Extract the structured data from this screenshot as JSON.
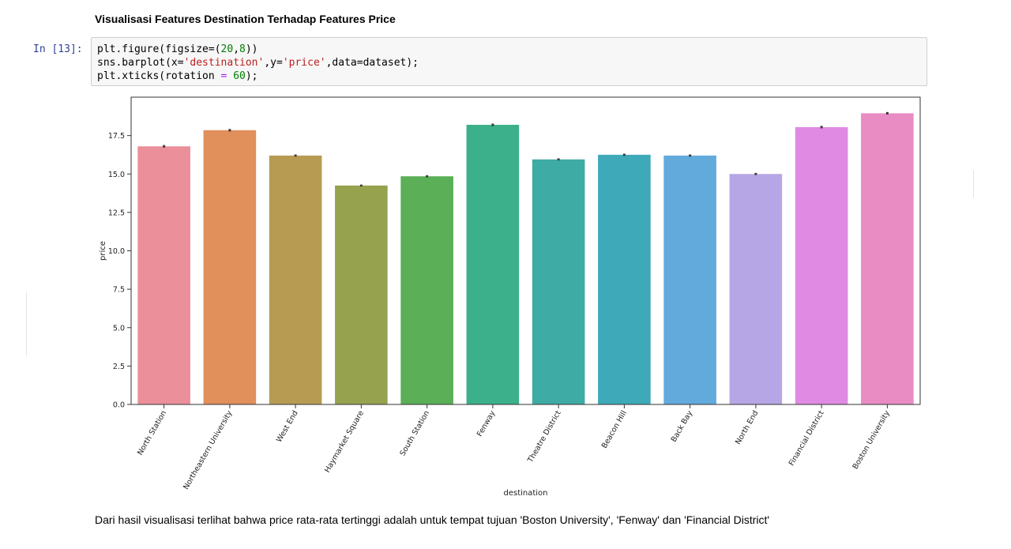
{
  "notebook": {
    "heading": "Visualisasi Features Destination Terhadap Features Price",
    "cell": {
      "prompt": "In [13]:",
      "lines": [
        [
          {
            "t": "plt.figure(figsize=("
          },
          {
            "t": "20",
            "c": "num"
          },
          {
            "t": ","
          },
          {
            "t": "8",
            "c": "num"
          },
          {
            "t": "))"
          }
        ],
        [
          {
            "t": "sns.barplot(x="
          },
          {
            "t": "'destination'",
            "c": "str"
          },
          {
            "t": ",y="
          },
          {
            "t": "'price'",
            "c": "str"
          },
          {
            "t": ",data=dataset);"
          }
        ],
        [
          {
            "t": "plt.xticks(rotation "
          },
          {
            "t": "=",
            "c": "op"
          },
          {
            "t": " "
          },
          {
            "t": "60",
            "c": "num"
          },
          {
            "t": ");"
          }
        ]
      ]
    },
    "conclusion": "Dari hasil visualisasi terlihat bahwa price rata-rata tertinggi adalah untuk tempat tujuan 'Boston University', 'Fenway' dan 'Financial District'"
  },
  "chart_data": {
    "type": "bar",
    "categories": [
      "North Station",
      "Northeastern University",
      "West End",
      "Haymarket Square",
      "South Station",
      "Fenway",
      "Theatre District",
      "Beacon Hill",
      "Back Bay",
      "North End",
      "Financial District",
      "Boston University"
    ],
    "values": [
      16.8,
      17.85,
      16.2,
      14.25,
      14.85,
      18.2,
      15.95,
      16.25,
      16.2,
      15.0,
      18.05,
      18.95
    ],
    "error_bars": [
      0.08,
      0.08,
      0.07,
      0.06,
      0.07,
      0.08,
      0.07,
      0.07,
      0.07,
      0.07,
      0.08,
      0.08
    ],
    "colors": [
      "#eb8f9a",
      "#e18f5b",
      "#b89b53",
      "#97a24f",
      "#5aaf57",
      "#3caf8b",
      "#3eaba4",
      "#3ea9b9",
      "#63aadc",
      "#b7a6e5",
      "#e08ae3",
      "#e98cc4"
    ],
    "xlabel": "destination",
    "ylabel": "price",
    "ylim": [
      0,
      20
    ],
    "yticks": [
      "0.0",
      "2.5",
      "5.0",
      "7.5",
      "10.0",
      "12.5",
      "15.0",
      "17.5"
    ],
    "ytick_values": [
      0,
      2.5,
      5,
      7.5,
      10,
      12.5,
      15,
      17.5
    ],
    "grid": false,
    "legend": "none"
  }
}
